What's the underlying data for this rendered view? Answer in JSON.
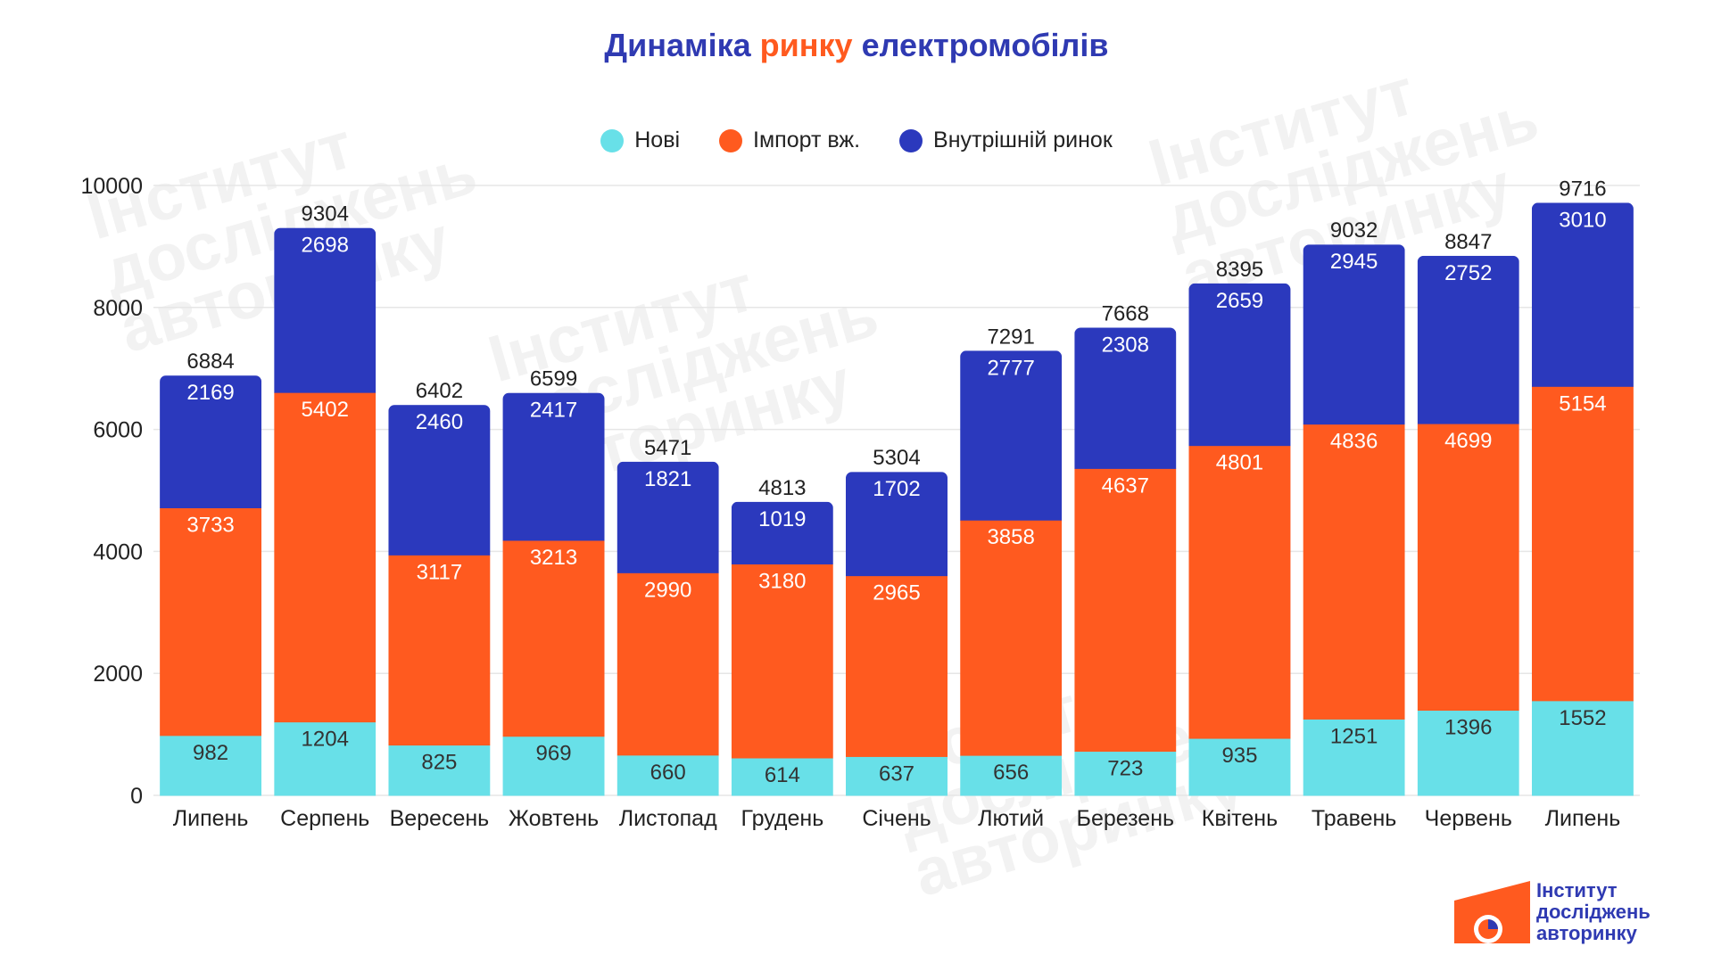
{
  "title": {
    "part1": "Динаміка",
    "part2": "ринку",
    "part3": "електромобілів"
  },
  "colors": {
    "new": "#68e0e8",
    "import": "#ff5a1f",
    "domestic": "#2b39bd",
    "title_blue": "#2f3ab2",
    "title_orange": "#ff5a1f"
  },
  "watermark": {
    "line1": "Інститут",
    "line2": "досліджень",
    "line3": "авторинку"
  },
  "logo": {
    "line1": "Інститут",
    "line2": "досліджень",
    "line3": "авторинку"
  },
  "chart_data": {
    "type": "bar",
    "stacked": true,
    "categories": [
      "Липень",
      "Серпень",
      "Вересень",
      "Жовтень",
      "Листопад",
      "Грудень",
      "Січень",
      "Лютий",
      "Березень",
      "Квітень",
      "Травень",
      "Червень",
      "Липень"
    ],
    "series": [
      {
        "name": "Нові",
        "values": [
          982,
          1204,
          825,
          969,
          660,
          614,
          637,
          656,
          723,
          935,
          1251,
          1396,
          1552
        ]
      },
      {
        "name": "Імпорт вж.",
        "values": [
          3733,
          5402,
          3117,
          3213,
          2990,
          3180,
          2965,
          3858,
          4637,
          4801,
          4836,
          4699,
          5154
        ]
      },
      {
        "name": "Внутрішній ринок",
        "values": [
          2169,
          2698,
          2460,
          2417,
          1821,
          1019,
          1702,
          2777,
          2308,
          2659,
          2945,
          2752,
          3010
        ]
      }
    ],
    "totals": [
      6884,
      9304,
      6402,
      6599,
      5471,
      4813,
      5304,
      7291,
      7668,
      8395,
      9032,
      8847,
      9716
    ],
    "ylim": [
      0,
      10000
    ],
    "yticks": [
      0,
      2000,
      4000,
      6000,
      8000,
      10000
    ],
    "grid": true,
    "legend": "top"
  }
}
